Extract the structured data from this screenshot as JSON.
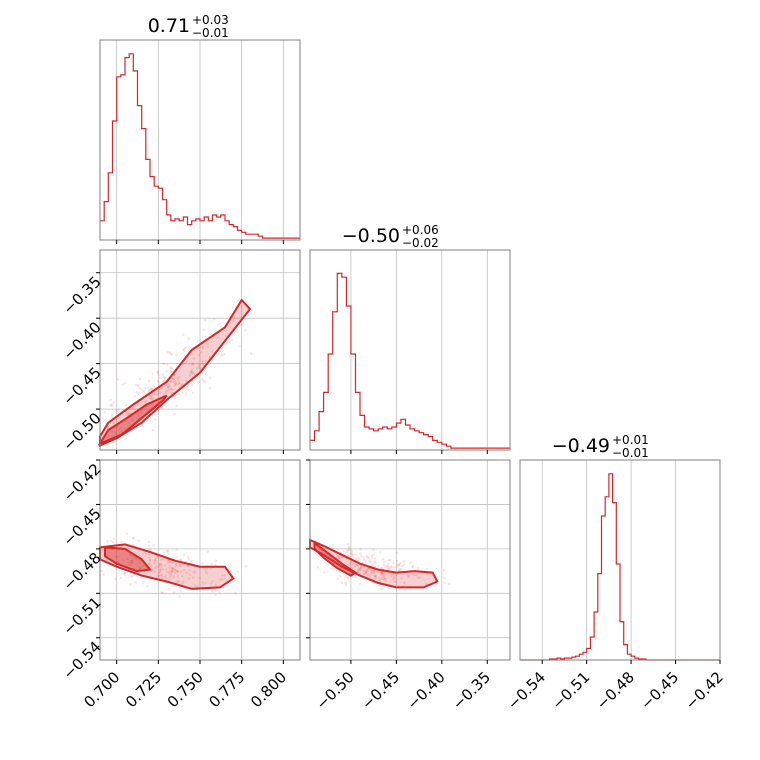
{
  "colors": {
    "accent": "#d62728",
    "grid": "#c0c0c0",
    "frame": "#808080"
  },
  "chart_data": {
    "type": "corner",
    "panels": [
      {
        "id": "hist-p0",
        "row": 0,
        "col": 0,
        "type": "histogram",
        "title": {
          "value": "0.71",
          "plus": "+0.03",
          "minus": "−0.01"
        },
        "xlim": [
          0.69,
          0.81
        ],
        "grid_x": [
          0.7,
          0.725,
          0.75,
          0.775,
          0.8
        ],
        "bins": {
          "start": 0.69,
          "width": 0.0025,
          "counts": [
            0.1,
            0.2,
            0.35,
            0.62,
            0.85,
            0.86,
            0.95,
            0.97,
            0.88,
            0.7,
            0.58,
            0.42,
            0.33,
            0.28,
            0.27,
            0.21,
            0.13,
            0.1,
            0.11,
            0.1,
            0.12,
            0.08,
            0.1,
            0.11,
            0.1,
            0.12,
            0.1,
            0.13,
            0.12,
            0.13,
            0.1,
            0.08,
            0.07,
            0.05,
            0.04,
            0.03,
            0.03,
            0.03,
            0.02,
            0.01,
            0.01,
            0.01,
            0.01,
            0.01,
            0.01,
            0.01,
            0.01,
            0.01
          ]
        }
      },
      {
        "id": "scatter-p0-p1",
        "row": 1,
        "col": 0,
        "type": "scatter-contour",
        "xlim": [
          0.69,
          0.81
        ],
        "ylim": [
          -0.545,
          -0.325
        ],
        "grid_x": [
          0.7,
          0.725,
          0.75,
          0.775,
          0.8
        ],
        "grid_y": [
          -0.5,
          -0.45,
          -0.4,
          -0.35
        ],
        "outer_contour": [
          [
            0.69,
            -0.54
          ],
          [
            0.7,
            -0.532
          ],
          [
            0.715,
            -0.515
          ],
          [
            0.73,
            -0.49
          ],
          [
            0.75,
            -0.46
          ],
          [
            0.765,
            -0.425
          ],
          [
            0.78,
            -0.39
          ],
          [
            0.775,
            -0.38
          ],
          [
            0.765,
            -0.41
          ],
          [
            0.745,
            -0.435
          ],
          [
            0.73,
            -0.47
          ],
          [
            0.71,
            -0.495
          ],
          [
            0.695,
            -0.515
          ],
          [
            0.69,
            -0.53
          ]
        ],
        "inner_contour": [
          [
            0.69,
            -0.538
          ],
          [
            0.703,
            -0.528
          ],
          [
            0.715,
            -0.51
          ],
          [
            0.728,
            -0.49
          ],
          [
            0.73,
            -0.485
          ],
          [
            0.718,
            -0.495
          ],
          [
            0.706,
            -0.51
          ],
          [
            0.695,
            -0.523
          ]
        ],
        "scatter_spread": [
          0.035,
          0.03
        ]
      },
      {
        "id": "hist-p1",
        "row": 1,
        "col": 1,
        "type": "histogram",
        "title": {
          "value": "−0.50",
          "plus": "+0.06",
          "minus": "−0.02"
        },
        "xlim": [
          -0.545,
          -0.325
        ],
        "grid_x": [
          -0.5,
          -0.45,
          -0.4,
          -0.35
        ],
        "bins": {
          "start": -0.545,
          "width": 0.005,
          "counts": [
            0.05,
            0.1,
            0.2,
            0.3,
            0.5,
            0.72,
            0.92,
            0.9,
            0.75,
            0.5,
            0.3,
            0.18,
            0.12,
            0.11,
            0.1,
            0.11,
            0.12,
            0.11,
            0.12,
            0.14,
            0.16,
            0.13,
            0.11,
            0.1,
            0.09,
            0.08,
            0.07,
            0.05,
            0.04,
            0.03,
            0.02,
            0.01,
            0.01,
            0.01,
            0.01,
            0.01,
            0.01,
            0.01,
            0.01,
            0.01,
            0.01,
            0.01,
            0.01,
            0.01
          ]
        }
      },
      {
        "id": "scatter-p0-p2",
        "row": 2,
        "col": 0,
        "type": "scatter-contour",
        "xlim": [
          0.69,
          0.81
        ],
        "ylim": [
          -0.555,
          -0.42
        ],
        "grid_x": [
          0.7,
          0.725,
          0.75,
          0.775,
          0.8
        ],
        "grid_y": [
          -0.54,
          -0.51,
          -0.48,
          -0.45,
          -0.42
        ],
        "outer_contour": [
          [
            0.69,
            -0.479
          ],
          [
            0.705,
            -0.477
          ],
          [
            0.72,
            -0.482
          ],
          [
            0.735,
            -0.488
          ],
          [
            0.75,
            -0.492
          ],
          [
            0.765,
            -0.492
          ],
          [
            0.77,
            -0.5
          ],
          [
            0.762,
            -0.506
          ],
          [
            0.745,
            -0.507
          ],
          [
            0.73,
            -0.502
          ],
          [
            0.715,
            -0.498
          ],
          [
            0.7,
            -0.492
          ],
          [
            0.69,
            -0.487
          ]
        ],
        "inner_contour": [
          [
            0.693,
            -0.479
          ],
          [
            0.705,
            -0.48
          ],
          [
            0.715,
            -0.487
          ],
          [
            0.72,
            -0.494
          ],
          [
            0.712,
            -0.495
          ],
          [
            0.7,
            -0.49
          ],
          [
            0.693,
            -0.485
          ]
        ],
        "scatter_spread": [
          0.04,
          0.018
        ]
      },
      {
        "id": "scatter-p1-p2",
        "row": 2,
        "col": 1,
        "type": "scatter-contour",
        "xlim": [
          -0.545,
          -0.325
        ],
        "ylim": [
          -0.555,
          -0.42
        ],
        "grid_x": [
          -0.5,
          -0.45,
          -0.4,
          -0.35
        ],
        "grid_y": [
          -0.54,
          -0.51,
          -0.48,
          -0.45,
          -0.42
        ],
        "outer_contour": [
          [
            -0.545,
            -0.474
          ],
          [
            -0.53,
            -0.478
          ],
          [
            -0.51,
            -0.484
          ],
          [
            -0.49,
            -0.49
          ],
          [
            -0.47,
            -0.494
          ],
          [
            -0.45,
            -0.496
          ],
          [
            -0.43,
            -0.495
          ],
          [
            -0.41,
            -0.496
          ],
          [
            -0.405,
            -0.502
          ],
          [
            -0.42,
            -0.506
          ],
          [
            -0.45,
            -0.506
          ],
          [
            -0.47,
            -0.503
          ],
          [
            -0.49,
            -0.498
          ],
          [
            -0.51,
            -0.492
          ],
          [
            -0.53,
            -0.484
          ],
          [
            -0.545,
            -0.479
          ]
        ],
        "inner_contour": [
          [
            -0.54,
            -0.476
          ],
          [
            -0.525,
            -0.483
          ],
          [
            -0.51,
            -0.49
          ],
          [
            -0.495,
            -0.496
          ],
          [
            -0.5,
            -0.498
          ],
          [
            -0.515,
            -0.493
          ],
          [
            -0.53,
            -0.486
          ],
          [
            -0.54,
            -0.48
          ]
        ],
        "scatter_spread": [
          0.07,
          0.018
        ]
      },
      {
        "id": "hist-p2",
        "row": 2,
        "col": 2,
        "type": "histogram",
        "title": {
          "value": "−0.49",
          "plus": "+0.01",
          "minus": "−0.01"
        },
        "xlim": [
          -0.555,
          -0.42
        ],
        "grid_x": [
          -0.54,
          -0.51,
          -0.48,
          -0.45,
          -0.42
        ],
        "bins": {
          "start": -0.555,
          "width": 0.0025,
          "counts": [
            0.0,
            0.0,
            0.0,
            0.0,
            0.0,
            0.0,
            0.0,
            0.0,
            0.005,
            0.005,
            0.01,
            0.005,
            0.01,
            0.01,
            0.015,
            0.02,
            0.03,
            0.04,
            0.06,
            0.12,
            0.25,
            0.45,
            0.75,
            0.85,
            0.97,
            0.82,
            0.5,
            0.2,
            0.08,
            0.03,
            0.02,
            0.01,
            0.005,
            0.005,
            0.0,
            0.0,
            0.0,
            0.0,
            0.0,
            0.0,
            0.0,
            0.0,
            0.0,
            0.0,
            0.0,
            0.0,
            0.0,
            0.0,
            0.0,
            0.0,
            0.0,
            0.0,
            0.0,
            0.0
          ]
        }
      }
    ],
    "axes": {
      "x_col0": {
        "ticks": [
          0.7,
          0.725,
          0.75,
          0.775,
          0.8
        ],
        "labels": [
          "0.700",
          "0.725",
          "0.750",
          "0.775",
          "0.800"
        ]
      },
      "x_col1": {
        "ticks": [
          -0.5,
          -0.45,
          -0.4,
          -0.35
        ],
        "labels": [
          "−0.50",
          "−0.45",
          "−0.40",
          "−0.35"
        ]
      },
      "x_col2": {
        "ticks": [
          -0.54,
          -0.51,
          -0.48,
          -0.45,
          -0.42
        ],
        "labels": [
          "−0.54",
          "−0.51",
          "−0.48",
          "−0.45",
          "−0.42"
        ]
      },
      "y_row1": {
        "ticks": [
          -0.35,
          -0.4,
          -0.45,
          -0.5
        ],
        "labels": [
          "−0.35",
          "−0.40",
          "−0.45",
          "−0.50"
        ]
      },
      "y_row2": {
        "ticks": [
          -0.42,
          -0.45,
          -0.48,
          -0.51,
          -0.54
        ],
        "labels": [
          "−0.42",
          "−0.45",
          "−0.48",
          "−0.51",
          "−0.54"
        ]
      }
    }
  }
}
